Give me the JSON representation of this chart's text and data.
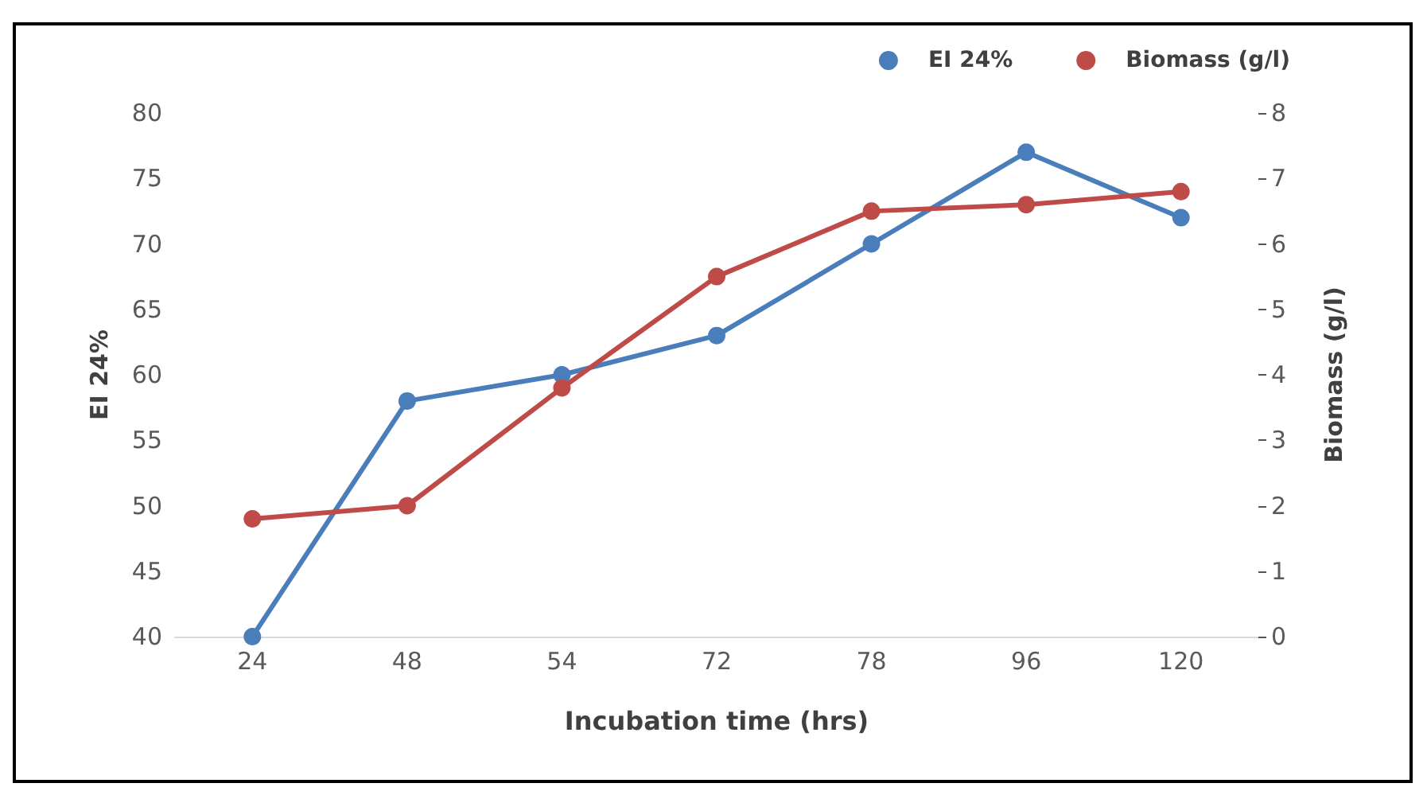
{
  "chart_data": {
    "type": "line",
    "xlabel": "Incubation time (hrs)",
    "ylabel": "EI 24%",
    "y2label": "Biomass (g/l)",
    "categories": [
      "24",
      "48",
      "54",
      "72",
      "78",
      "96",
      "120"
    ],
    "series": [
      {
        "name": "EI 24%",
        "color": "#4a7ebb",
        "values": [
          40,
          58,
          60,
          63,
          70,
          77,
          72
        ]
      },
      {
        "name": "Biomass (g/l)",
        "color": "#be4b48",
        "axis": "y2",
        "values": [
          1.8,
          2.0,
          3.8,
          5.5,
          6.5,
          6.6,
          6.8
        ]
      }
    ],
    "ylim": [
      40,
      80
    ],
    "yticks": [
      40,
      45,
      50,
      55,
      60,
      65,
      70,
      75,
      80
    ],
    "y2lim": [
      0,
      8
    ],
    "y2ticks": [
      0,
      1,
      2,
      3,
      4,
      5,
      6,
      7,
      8
    ],
    "grid": false,
    "legend": "top right",
    "marker": "circle",
    "line_style": "solid"
  }
}
